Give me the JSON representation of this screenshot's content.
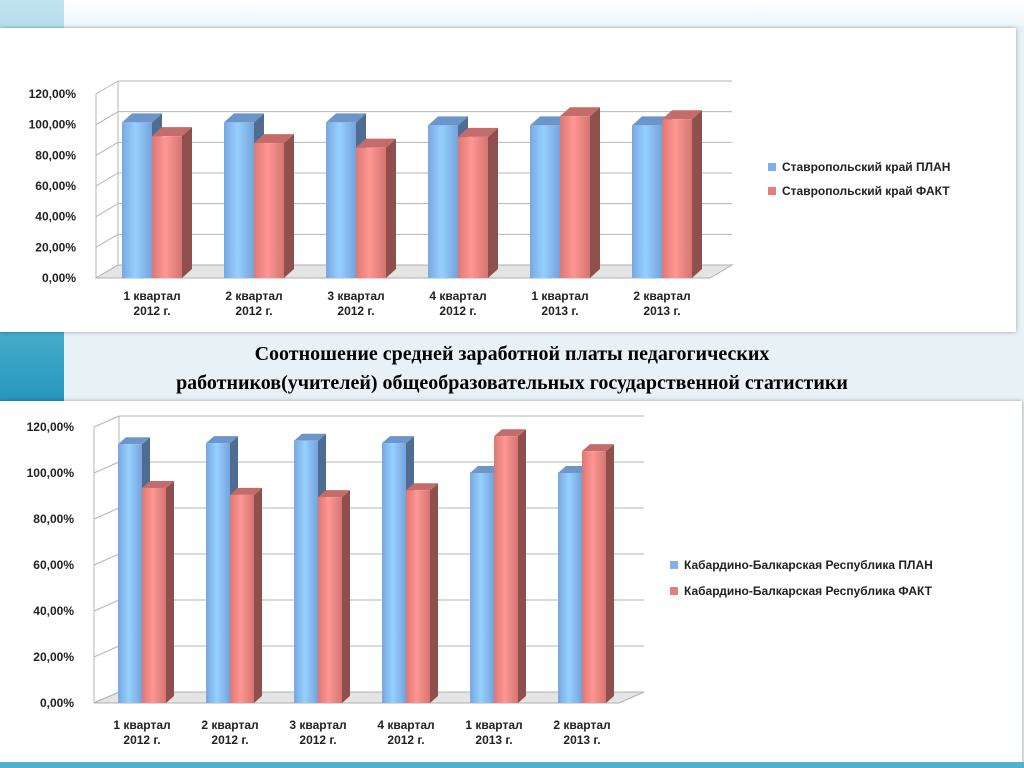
{
  "caption": {
    "line1": "Соотношение средней заработной платы педагогических",
    "line2": "работников(учителей) общеобразовательных государственной статистики"
  },
  "colors": {
    "plan": "#7fb0ec",
    "fact": "#e67f7c"
  },
  "chart_data": [
    {
      "type": "bar",
      "title": "",
      "xlabel": "",
      "ylabel": "",
      "ylim": [
        0,
        120
      ],
      "yticks": [
        "0,00%",
        "20,00%",
        "40,00%",
        "60,00%",
        "80,00%",
        "100,00%",
        "120,00%"
      ],
      "categories": [
        [
          "1 квартал",
          "2012 г."
        ],
        [
          "2 квартал",
          "2012 г."
        ],
        [
          "3 квартал",
          "2012 г."
        ],
        [
          "4 квартал",
          "2012 г."
        ],
        [
          "1 квартал",
          "2013 г."
        ],
        [
          "2 квартал",
          "2013 г."
        ]
      ],
      "series": [
        {
          "name": "Ставропольский край ПЛАН",
          "values": [
            101.5,
            101.5,
            101.5,
            99.5,
            99.5,
            99.5
          ]
        },
        {
          "name": "Ставропольский край ФАКТ",
          "values": [
            92.5,
            88,
            85,
            92,
            105.5,
            103.5
          ]
        }
      ],
      "legend": "right"
    },
    {
      "type": "bar",
      "title": "",
      "xlabel": "",
      "ylabel": "",
      "ylim": [
        0,
        120
      ],
      "yticks": [
        "0,00%",
        "20,00%",
        "40,00%",
        "60,00%",
        "80,00%",
        "100,00%",
        "120,00%"
      ],
      "categories": [
        [
          "1 квартал",
          "2012 г."
        ],
        [
          "2 квартал",
          "2012 г."
        ],
        [
          "3 квартал",
          "2012 г."
        ],
        [
          "4 квартал",
          "2012 г."
        ],
        [
          "1 квартал",
          "2013 г."
        ],
        [
          "2 квартал",
          "2013 г."
        ]
      ],
      "series": [
        {
          "name": "Кабардино-Балкарская Республика ПЛАН",
          "values": [
            112.5,
            113,
            114,
            113,
            100,
            100
          ]
        },
        {
          "name": "Кабардино-Балкарская Республика ФАКТ",
          "values": [
            93.5,
            90.5,
            89.5,
            92.5,
            116,
            109.5
          ]
        }
      ],
      "legend": "right"
    }
  ]
}
